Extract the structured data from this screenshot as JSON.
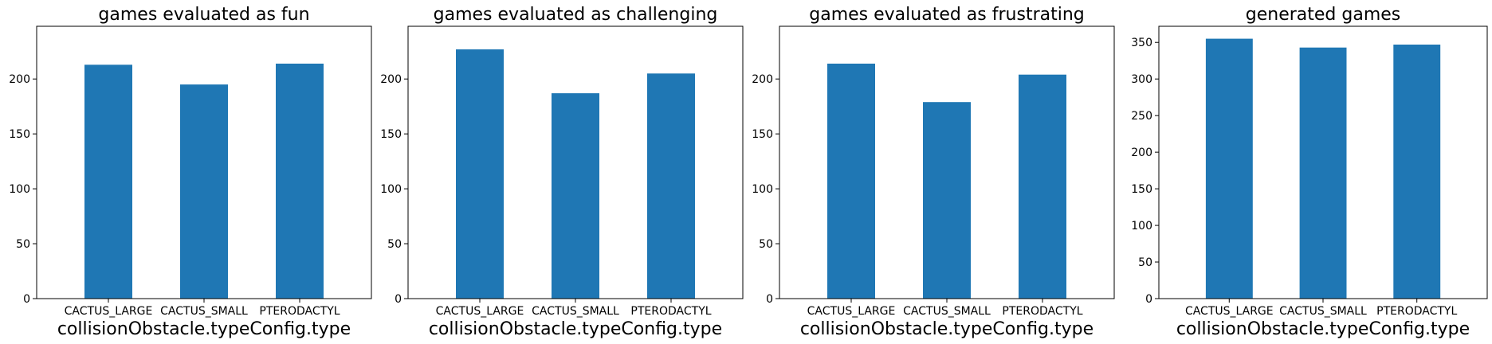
{
  "chart_data": [
    {
      "type": "bar",
      "title": "games evaluated as fun",
      "xlabel": "collisionObstacle.typeConfig.type",
      "ylabel": "",
      "categories": [
        "CACTUS_LARGE",
        "CACTUS_SMALL",
        "PTERODACTYL"
      ],
      "values": [
        213,
        195,
        214
      ],
      "ylim": [
        0,
        248
      ],
      "yticks": [
        0,
        50,
        100,
        150,
        200
      ],
      "color": "#1f77b4",
      "grid": false
    },
    {
      "type": "bar",
      "title": "games evaluated as challenging",
      "xlabel": "collisionObstacle.typeConfig.type",
      "ylabel": "",
      "categories": [
        "CACTUS_LARGE",
        "CACTUS_SMALL",
        "PTERODACTYL"
      ],
      "values": [
        227,
        187,
        205
      ],
      "ylim": [
        0,
        248
      ],
      "yticks": [
        0,
        50,
        100,
        150,
        200
      ],
      "color": "#1f77b4",
      "grid": false
    },
    {
      "type": "bar",
      "title": "games evaluated as frustrating",
      "xlabel": "collisionObstacle.typeConfig.type",
      "ylabel": "",
      "categories": [
        "CACTUS_LARGE",
        "CACTUS_SMALL",
        "PTERODACTYL"
      ],
      "values": [
        214,
        179,
        204
      ],
      "ylim": [
        0,
        248
      ],
      "yticks": [
        0,
        50,
        100,
        150,
        200
      ],
      "color": "#1f77b4",
      "grid": false
    },
    {
      "type": "bar",
      "title": "generated games",
      "xlabel": "collisionObstacle.typeConfig.type",
      "ylabel": "",
      "categories": [
        "CACTUS_LARGE",
        "CACTUS_SMALL",
        "PTERODACTYL"
      ],
      "values": [
        355,
        343,
        347
      ],
      "ylim": [
        0,
        372
      ],
      "yticks": [
        0,
        50,
        100,
        150,
        200,
        250,
        300,
        350
      ],
      "color": "#1f77b4",
      "grid": false
    }
  ]
}
